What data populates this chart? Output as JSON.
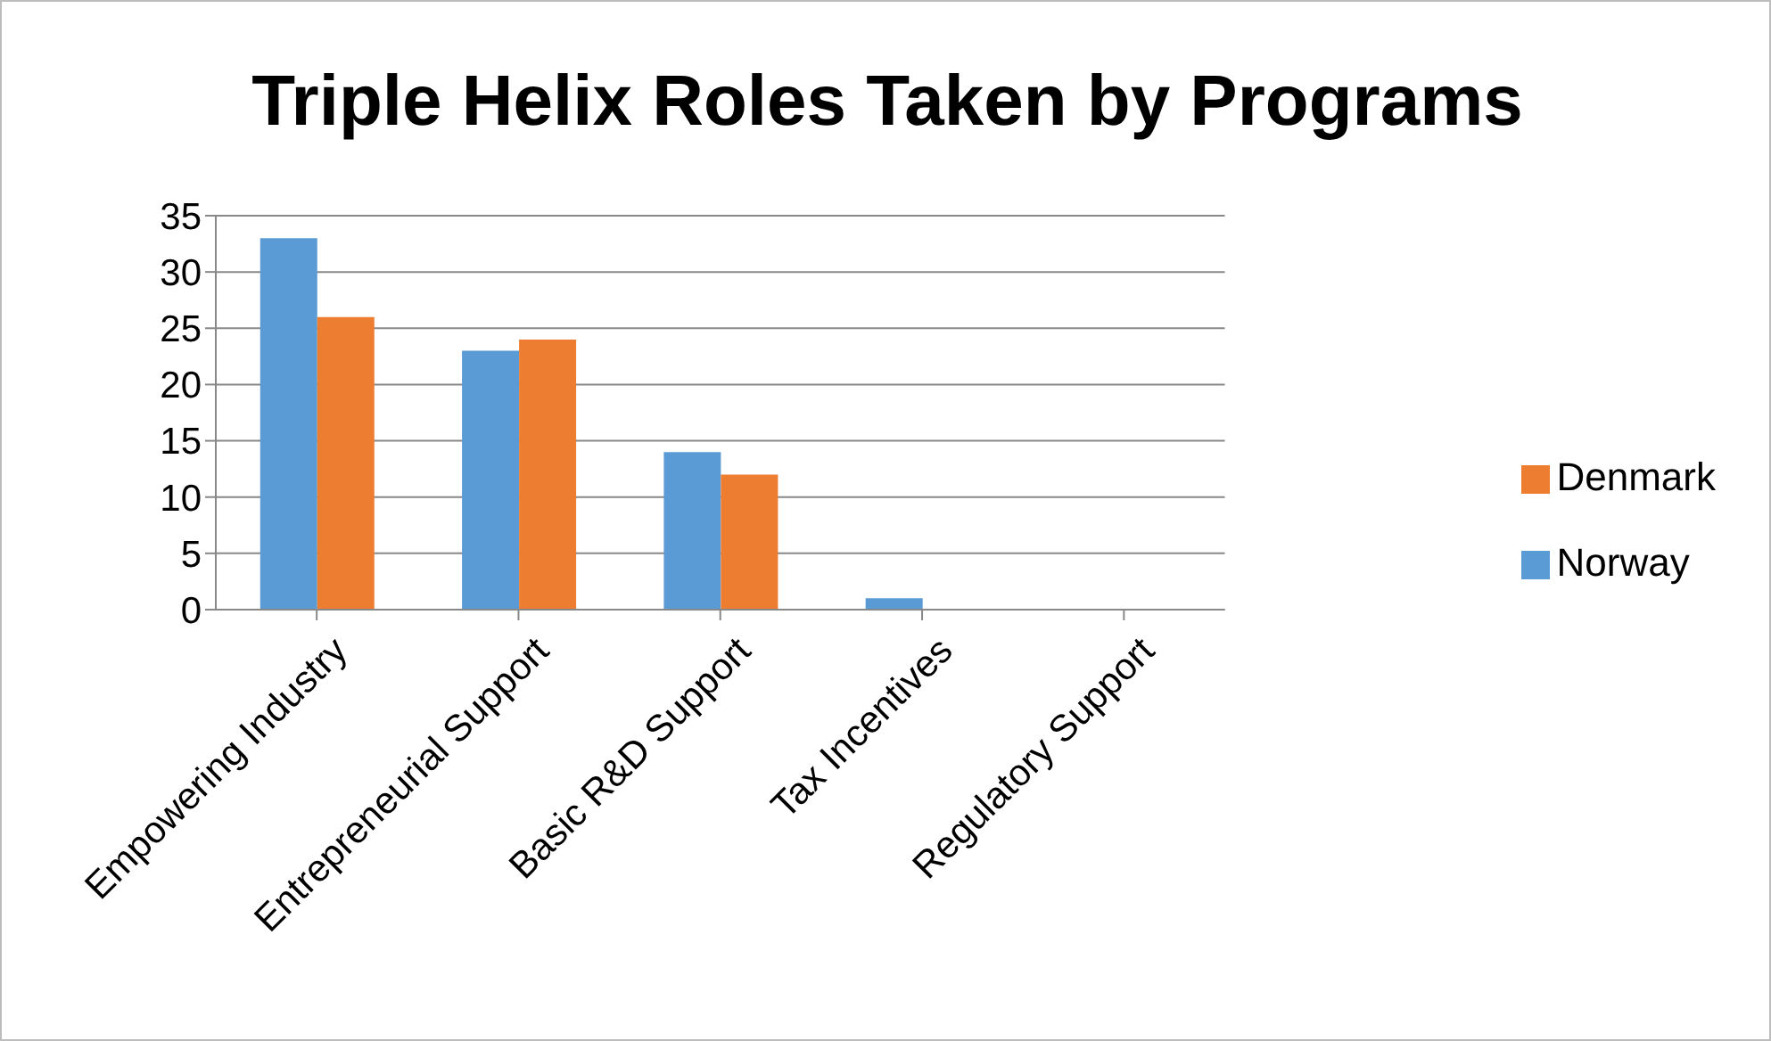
{
  "chart_data": {
    "type": "bar",
    "title": "Triple Helix Roles Taken by Programs",
    "categories": [
      "Empowering Industry",
      "Entrepreneurial Support",
      "Basic R&D Support",
      "Tax Incentives",
      "Regulatory Support"
    ],
    "series": [
      {
        "name": "Norway",
        "color": "#5b9bd5",
        "values": [
          33,
          23,
          14,
          1,
          0
        ]
      },
      {
        "name": "Denmark",
        "color": "#ed7d31",
        "values": [
          26,
          24,
          12,
          0,
          0
        ]
      }
    ],
    "ylim": [
      0,
      35
    ],
    "yticks": [
      0,
      5,
      10,
      15,
      20,
      25,
      30,
      35
    ],
    "grid": "y",
    "legend": "right"
  }
}
